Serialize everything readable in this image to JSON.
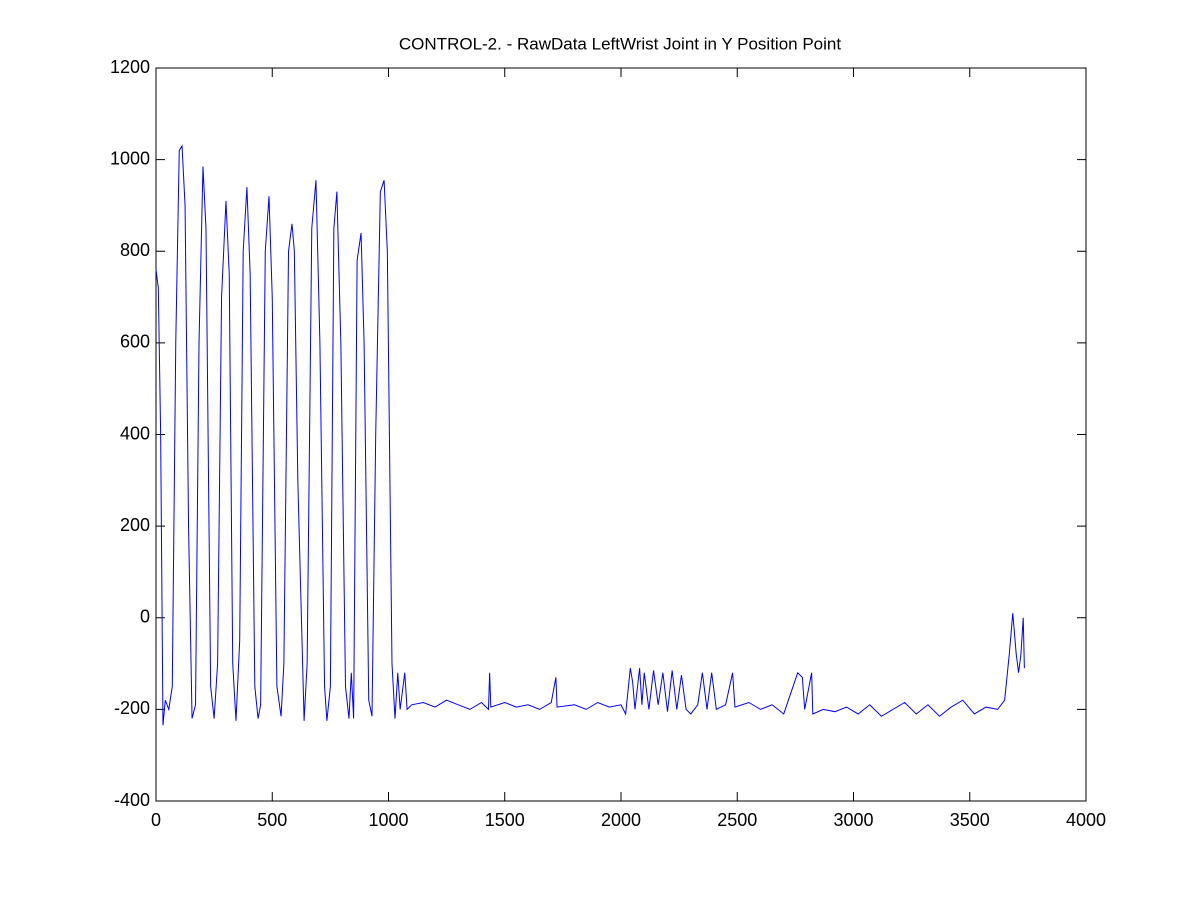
{
  "chart_data": {
    "type": "line",
    "title": "CONTROL-2. - RawData LeftWrist Joint in Y Position Point",
    "x": [
      0,
      10,
      20,
      30,
      40,
      55,
      70,
      85,
      100,
      112,
      125,
      140,
      155,
      170,
      185,
      202,
      215,
      235,
      250,
      265,
      282,
      301,
      315,
      330,
      344,
      360,
      375,
      391,
      405,
      425,
      439,
      450,
      470,
      486,
      500,
      520,
      538,
      550,
      570,
      585,
      595,
      610,
      637,
      650,
      670,
      688,
      705,
      725,
      735,
      750,
      765,
      778,
      795,
      815,
      830,
      840,
      850,
      865,
      882,
      895,
      915,
      929,
      945,
      965,
      981,
      995,
      1015,
      1028,
      1040,
      1050,
      1070,
      1080,
      1100,
      1150,
      1200,
      1250,
      1300,
      1350,
      1400,
      1430,
      1435,
      1440,
      1500,
      1550,
      1600,
      1650,
      1700,
      1720,
      1725,
      1800,
      1850,
      1900,
      1950,
      2000,
      2020,
      2040,
      2050,
      2060,
      2080,
      2090,
      2100,
      2120,
      2140,
      2160,
      2180,
      2200,
      2220,
      2240,
      2260,
      2280,
      2300,
      2330,
      2350,
      2370,
      2390,
      2410,
      2450,
      2480,
      2490,
      2550,
      2600,
      2650,
      2700,
      2740,
      2760,
      2780,
      2790,
      2820,
      2825,
      2870,
      2920,
      2970,
      3020,
      3070,
      3120,
      3170,
      3220,
      3270,
      3320,
      3370,
      3420,
      3470,
      3520,
      3570,
      3620,
      3650,
      3670,
      3685,
      3700,
      3710,
      3720,
      3730,
      3735
    ],
    "series": [
      {
        "color": "#0000ff",
        "values": [
          760,
          720,
          400,
          -235,
          -180,
          -200,
          -150,
          600,
          1020,
          1030,
          900,
          200,
          -220,
          -190,
          600,
          985,
          850,
          -150,
          -220,
          -100,
          700,
          910,
          750,
          -100,
          -225,
          -50,
          800,
          940,
          750,
          -150,
          -220,
          -190,
          800,
          920,
          700,
          -150,
          -215,
          -100,
          800,
          860,
          800,
          300,
          -225,
          -100,
          850,
          955,
          600,
          -150,
          -225,
          -150,
          850,
          930,
          600,
          -150,
          -220,
          -120,
          -220,
          780,
          840,
          600,
          -180,
          -215,
          400,
          930,
          955,
          800,
          -100,
          -220,
          -120,
          -200,
          -120,
          -200,
          -190,
          -185,
          -195,
          -180,
          -190,
          -200,
          -185,
          -200,
          -120,
          -195,
          -185,
          -195,
          -190,
          -200,
          -185,
          -130,
          -195,
          -190,
          -200,
          -185,
          -195,
          -190,
          -210,
          -110,
          -140,
          -200,
          -110,
          -190,
          -120,
          -200,
          -115,
          -190,
          -120,
          -205,
          -115,
          -200,
          -125,
          -200,
          -210,
          -190,
          -120,
          -200,
          -120,
          -200,
          -190,
          -120,
          -195,
          -185,
          -200,
          -190,
          -210,
          -150,
          -120,
          -130,
          -200,
          -120,
          -210,
          -200,
          -205,
          -195,
          -210,
          -190,
          -215,
          -200,
          -185,
          -210,
          -190,
          -215,
          -195,
          -180,
          -210,
          -195,
          -200,
          -180,
          -80,
          10,
          -80,
          -120,
          -80,
          0,
          -110
        ]
      }
    ],
    "xlim": [
      0,
      4000
    ],
    "ylim": [
      -400,
      1200
    ],
    "xticks": [
      0,
      500,
      1000,
      1500,
      2000,
      2500,
      3000,
      3500,
      4000
    ],
    "yticks": [
      -400,
      -200,
      0,
      200,
      400,
      600,
      800,
      1000,
      1200
    ]
  }
}
